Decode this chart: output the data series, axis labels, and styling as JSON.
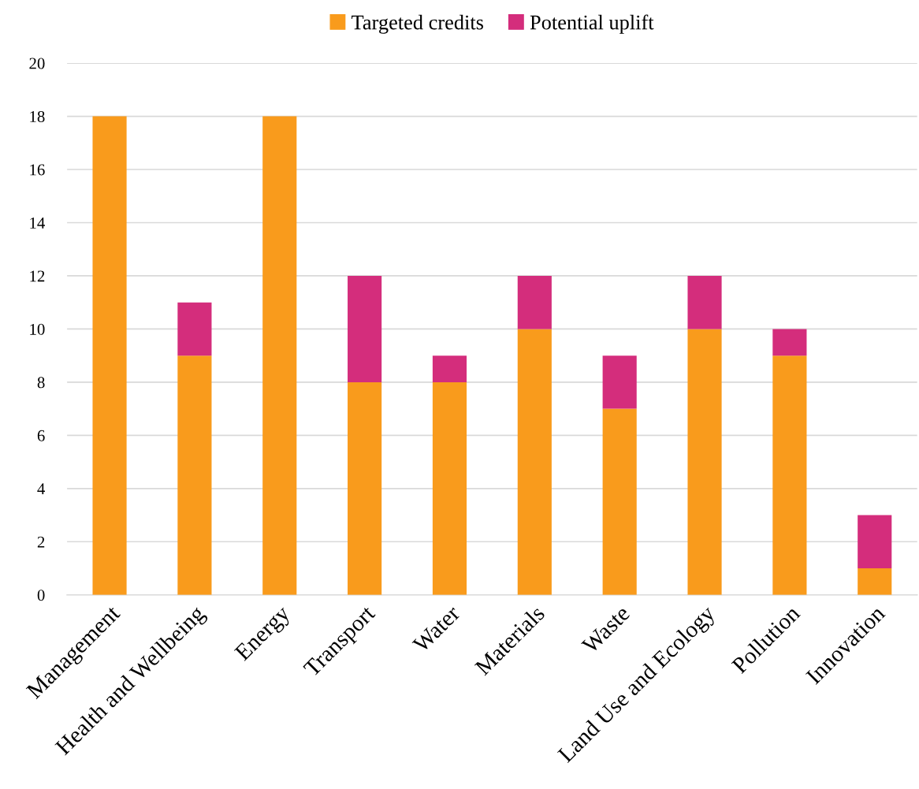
{
  "chart_data": {
    "type": "bar",
    "stacked": true,
    "categories": [
      "Management",
      "Health and Wellbeing",
      "Energy",
      "Transport",
      "Water",
      "Materials",
      "Waste",
      "Land Use and Ecology",
      "Pollution",
      "Innovation"
    ],
    "series": [
      {
        "name": "Targeted credits",
        "color": "#f99b1c",
        "values": [
          18,
          9,
          18,
          8,
          8,
          10,
          7,
          10,
          9,
          1
        ]
      },
      {
        "name": "Potential uplift",
        "color": "#d42d7c",
        "values": [
          0,
          2,
          0,
          4,
          1,
          2,
          2,
          2,
          1,
          2
        ]
      }
    ],
    "ylim": [
      0,
      20
    ],
    "yticks": [
      0,
      2,
      4,
      6,
      8,
      10,
      12,
      14,
      16,
      18,
      20
    ],
    "grid": "y",
    "legend": "top"
  }
}
